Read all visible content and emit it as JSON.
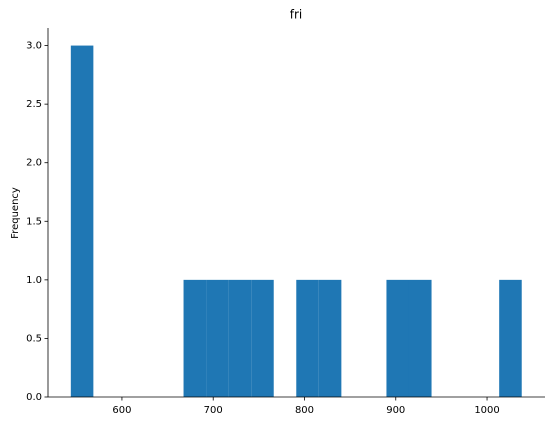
{
  "chart_data": {
    "type": "histogram",
    "title": "fri",
    "y_label": "Frequency",
    "bins": [
      544,
      568.7,
      593.4,
      618.1,
      642.8,
      667.5,
      692.2,
      716.9,
      741.6,
      766.3,
      791,
      815.7,
      840.4,
      865.1,
      889.8,
      914.5,
      939.2,
      963.9,
      988.6,
      1013.3,
      1038
    ],
    "values": [
      3,
      0,
      0,
      0,
      0,
      1,
      1,
      1,
      1,
      0,
      1,
      1,
      0,
      0,
      1,
      1,
      0,
      0,
      0,
      1
    ],
    "color": "#1f77b4",
    "xlim": [
      519,
      1063.5
    ],
    "xticks": [
      600,
      700,
      800,
      900,
      1000
    ],
    "ylim": [
      0,
      3.15
    ],
    "yticks": [
      {
        "value": 0,
        "label": "0.0"
      },
      {
        "value": 0.5,
        "label": "0.5"
      },
      {
        "value": 1,
        "label": "1.0"
      },
      {
        "value": 1.5,
        "label": "1.5"
      },
      {
        "value": 2,
        "label": "2.0"
      },
      {
        "value": 2.5,
        "label": "2.5"
      },
      {
        "value": 3,
        "label": "3.0"
      }
    ]
  }
}
